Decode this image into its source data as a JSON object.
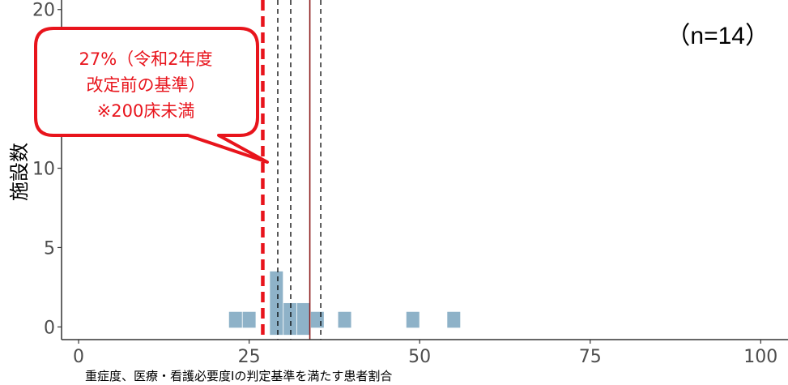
{
  "chart_data": {
    "type": "bar",
    "xlabel": "重症度、医療・看護必要度Ⅰの判定基準を満たす患者割合",
    "ylabel": "施設数",
    "x_ticks": [
      "0",
      "25",
      "50",
      "75",
      "100"
    ],
    "y_ticks": [
      "0",
      "5",
      "10",
      "20"
    ],
    "xlim": [
      -2.5,
      104
    ],
    "ylim": [
      -0.8,
      20.6
    ],
    "bins": [
      {
        "x": 23,
        "count": 1
      },
      {
        "x": 25,
        "count": 1
      },
      {
        "x": 29,
        "count": 4
      },
      {
        "x": 31,
        "count": 2
      },
      {
        "x": 33,
        "count": 2
      },
      {
        "x": 35,
        "count": 1
      },
      {
        "x": 39,
        "count": 1
      },
      {
        "x": 49,
        "count": 1
      },
      {
        "x": 55,
        "count": 1
      }
    ],
    "bin_width": 1.9,
    "bar_color": "#8eb2c8",
    "reference_lines": [
      {
        "x": 27,
        "style": "thick-dashed",
        "color": "#e8141c"
      },
      {
        "x": 29.2,
        "style": "dashed",
        "color": "#000000"
      },
      {
        "x": 31.1,
        "style": "dashed",
        "color": "#000000"
      },
      {
        "x": 33.9,
        "style": "solid",
        "color": "#8b1a1a"
      },
      {
        "x": 35.5,
        "style": "dashed",
        "color": "#000000"
      }
    ],
    "grid": false
  },
  "annotations": {
    "n_label": "（n=14）",
    "callout_lines": [
      "27%（令和2年度",
      "改定前の基準）",
      "※200床未満"
    ],
    "callout_color": "#e8141c"
  }
}
